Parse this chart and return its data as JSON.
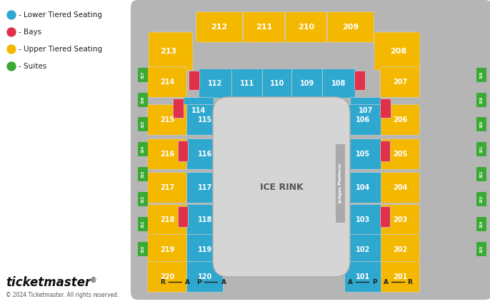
{
  "colors": {
    "lower": "#2fa8d0",
    "bay": "#e0304a",
    "upper": "#f5b800",
    "suite": "#3aaa35",
    "rink": "#d5d5d5",
    "judges": "#999999",
    "arena_bg": "#b5b5b5",
    "white": "#ffffff",
    "dark": "#333333"
  },
  "legend": [
    {
      "color": "#2fa8d0",
      "label": "- Lower Tiered Seating"
    },
    {
      "color": "#e0304a",
      "label": "- Bays"
    },
    {
      "color": "#f5b800",
      "label": "- Upper Tiered Seating"
    },
    {
      "color": "#3aaa35",
      "label": "- Suites"
    }
  ],
  "ticketmaster_text": "ticketmaster®",
  "copyright_text": "© 2024 Ticketmaster. All rights reserved."
}
